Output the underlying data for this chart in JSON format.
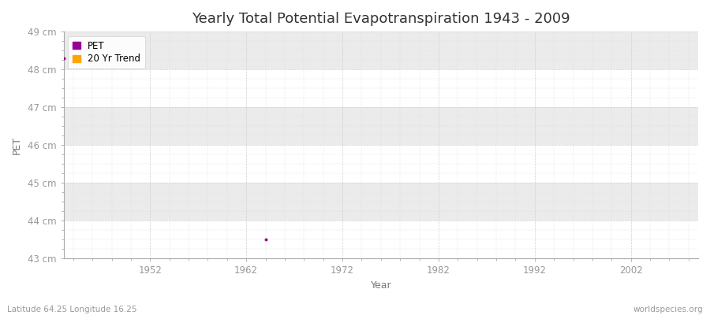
{
  "title": "Yearly Total Potential Evapotranspiration 1943 - 2009",
  "xlabel": "Year",
  "ylabel": "PET",
  "background_color": "#f5f5f5",
  "plot_bg_color": "#f0f0f0",
  "band_colors": [
    "#ffffff",
    "#ebebeb"
  ],
  "ylim": [
    43,
    49
  ],
  "xlim": [
    1943,
    2009
  ],
  "yticks": [
    43,
    44,
    45,
    46,
    47,
    48,
    49
  ],
  "ytick_labels": [
    "43 cm",
    "44 cm",
    "45 cm",
    "46 cm",
    "47 cm",
    "48 cm",
    "49 cm"
  ],
  "xticks": [
    1952,
    1962,
    1972,
    1982,
    1992,
    2002
  ],
  "xtick_labels": [
    "1952",
    "1962",
    "1972",
    "1982",
    "1992",
    "2002"
  ],
  "data_points_x": [
    1943,
    1964
  ],
  "data_points_y": [
    48.3,
    43.5
  ],
  "pet_color": "#990099",
  "trend_color": "#ffa500",
  "footer_left": "Latitude 64.25 Longitude 16.25",
  "footer_right": "worldspecies.org",
  "title_fontsize": 13,
  "axis_label_fontsize": 9,
  "tick_fontsize": 8.5,
  "footer_fontsize": 7.5,
  "legend_labels": [
    "PET",
    "20 Yr Trend"
  ],
  "grid_color": "#d0d0d0",
  "grid_linestyle": "--",
  "grid_linewidth": 0.5,
  "minor_grid_color": "#e0e0e0",
  "minor_grid_linewidth": 0.3
}
